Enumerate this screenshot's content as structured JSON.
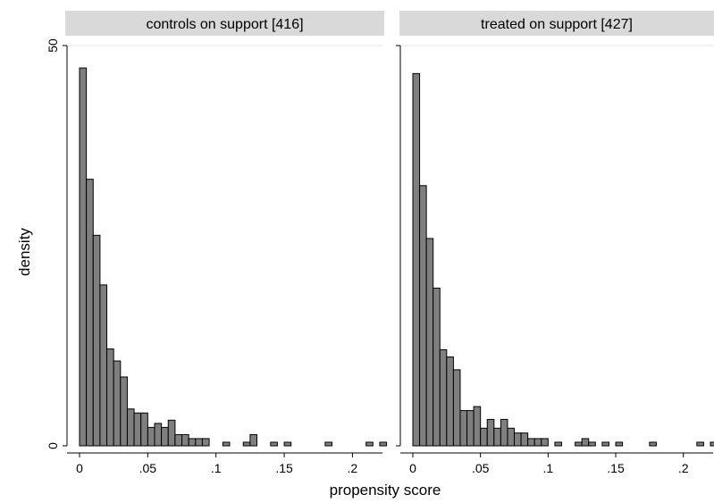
{
  "chart_data": {
    "type": "bar",
    "xlabel": "propensity score",
    "ylabel": "density",
    "bin_width": 0.005,
    "xlim": [
      0,
      0.22
    ],
    "ylim": [
      0,
      50
    ],
    "x_ticks": [
      {
        "value": 0,
        "label": "0"
      },
      {
        "value": 0.05,
        "label": ".05"
      },
      {
        "value": 0.1,
        "label": ".1"
      },
      {
        "value": 0.15,
        "label": ".15"
      },
      {
        "value": 0.2,
        "label": ".2"
      }
    ],
    "y_ticks": [
      {
        "value": 0,
        "label": "0"
      },
      {
        "value": 50,
        "label": "50"
      }
    ],
    "grid": true,
    "bar_color": "#7f7f7f",
    "panels": [
      {
        "title": "controls on support [416]",
        "bins": [
          {
            "x": 0.0,
            "y": 47.2
          },
          {
            "x": 0.005,
            "y": 33.3
          },
          {
            "x": 0.01,
            "y": 26.3
          },
          {
            "x": 0.015,
            "y": 20.1
          },
          {
            "x": 0.02,
            "y": 12.1
          },
          {
            "x": 0.025,
            "y": 10.6
          },
          {
            "x": 0.03,
            "y": 8.6
          },
          {
            "x": 0.035,
            "y": 4.6
          },
          {
            "x": 0.04,
            "y": 4.1
          },
          {
            "x": 0.045,
            "y": 4.1
          },
          {
            "x": 0.05,
            "y": 2.3
          },
          {
            "x": 0.055,
            "y": 2.8
          },
          {
            "x": 0.06,
            "y": 2.3
          },
          {
            "x": 0.065,
            "y": 3.2
          },
          {
            "x": 0.07,
            "y": 1.4
          },
          {
            "x": 0.075,
            "y": 1.4
          },
          {
            "x": 0.08,
            "y": 0.9
          },
          {
            "x": 0.085,
            "y": 0.9
          },
          {
            "x": 0.09,
            "y": 0.9
          },
          {
            "x": 0.105,
            "y": 0.45
          },
          {
            "x": 0.12,
            "y": 0.45
          },
          {
            "x": 0.125,
            "y": 1.4
          },
          {
            "x": 0.14,
            "y": 0.45
          },
          {
            "x": 0.15,
            "y": 0.45
          },
          {
            "x": 0.18,
            "y": 0.45
          },
          {
            "x": 0.21,
            "y": 0.45
          },
          {
            "x": 0.22,
            "y": 0.45
          }
        ]
      },
      {
        "title": "treated on support [427]",
        "bins": [
          {
            "x": 0.0,
            "y": 46.5
          },
          {
            "x": 0.005,
            "y": 32.5
          },
          {
            "x": 0.01,
            "y": 25.9
          },
          {
            "x": 0.015,
            "y": 19.7
          },
          {
            "x": 0.02,
            "y": 12.0
          },
          {
            "x": 0.025,
            "y": 11.1
          },
          {
            "x": 0.03,
            "y": 9.5
          },
          {
            "x": 0.035,
            "y": 4.4
          },
          {
            "x": 0.04,
            "y": 4.4
          },
          {
            "x": 0.045,
            "y": 4.9
          },
          {
            "x": 0.05,
            "y": 2.2
          },
          {
            "x": 0.055,
            "y": 3.3
          },
          {
            "x": 0.06,
            "y": 2.2
          },
          {
            "x": 0.065,
            "y": 3.3
          },
          {
            "x": 0.07,
            "y": 2.2
          },
          {
            "x": 0.075,
            "y": 1.6
          },
          {
            "x": 0.08,
            "y": 1.6
          },
          {
            "x": 0.085,
            "y": 0.9
          },
          {
            "x": 0.09,
            "y": 0.9
          },
          {
            "x": 0.095,
            "y": 0.9
          },
          {
            "x": 0.105,
            "y": 0.45
          },
          {
            "x": 0.12,
            "y": 0.45
          },
          {
            "x": 0.125,
            "y": 0.9
          },
          {
            "x": 0.13,
            "y": 0.45
          },
          {
            "x": 0.14,
            "y": 0.45
          },
          {
            "x": 0.15,
            "y": 0.45
          },
          {
            "x": 0.175,
            "y": 0.45
          },
          {
            "x": 0.21,
            "y": 0.45
          },
          {
            "x": 0.22,
            "y": 0.45
          }
        ]
      }
    ]
  }
}
